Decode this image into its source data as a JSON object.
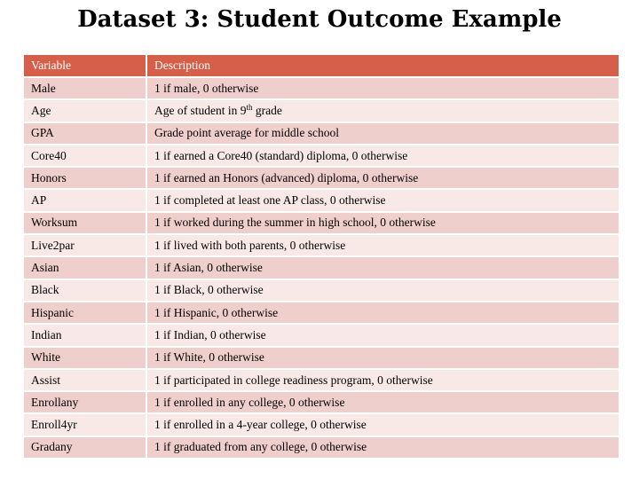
{
  "title": "Dataset 3: Student Outcome Example",
  "table": {
    "headers": [
      "Variable",
      "Description"
    ],
    "rows": [
      {
        "variable": "Male",
        "description": "1 if male, 0 otherwise"
      },
      {
        "variable": "Age",
        "description_pre": "Age of student in 9",
        "description_sup": "th",
        "description_post": " grade"
      },
      {
        "variable": "GPA",
        "description": "Grade point average for middle school"
      },
      {
        "variable": "Core40",
        "description": "1 if earned a Core40 (standard) diploma, 0 otherwise"
      },
      {
        "variable": "Honors",
        "description": "1 if earned an Honors (advanced) diploma, 0 otherwise"
      },
      {
        "variable": "AP",
        "description": "1 if completed at least one AP class, 0 otherwise"
      },
      {
        "variable": "Worksum",
        "description": "1 if worked during the summer in high school, 0 otherwise"
      },
      {
        "variable": "Live2par",
        "description": "1 if lived with both parents, 0 otherwise"
      },
      {
        "variable": "Asian",
        "description": "1 if Asian, 0 otherwise"
      },
      {
        "variable": "Black",
        "description": "1 if Black, 0 otherwise"
      },
      {
        "variable": "Hispanic",
        "description": "1 if Hispanic, 0 otherwise"
      },
      {
        "variable": "Indian",
        "description": "1 if Indian, 0 otherwise"
      },
      {
        "variable": "White",
        "description": "1 if White, 0 otherwise"
      },
      {
        "variable": "Assist",
        "description": "1 if participated in college readiness program, 0 otherwise"
      },
      {
        "variable": "Enrollany",
        "description": "1 if enrolled in any college, 0 otherwise"
      },
      {
        "variable": "Enroll4yr",
        "description": "1 if enrolled in a 4-year college, 0 otherwise"
      },
      {
        "variable": "Gradany",
        "description": "1 if graduated from any college, 0 otherwise"
      }
    ]
  },
  "colors": {
    "header_bg": "#d55f48",
    "row_odd": "#efcfcb",
    "row_even": "#f8e9e7"
  }
}
